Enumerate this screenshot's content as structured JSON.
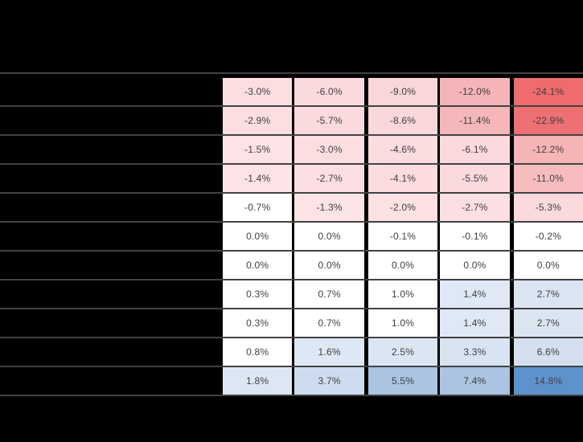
{
  "page": {
    "background": "#000000"
  },
  "colors": {
    "negative_strong": "#ee6b6e",
    "negative_medium": "#f5b4b7",
    "negative_light": "#fbdade",
    "neutral": "#ffffff",
    "positive_light": "#dce6f3",
    "positive_medium": "#aac4e2",
    "positive_strong": "#5e92cc",
    "cell_text": "#3f3f3f",
    "column_border": "#000000",
    "row_separator": "#6e6e6e"
  },
  "chart_data": {
    "type": "heatmap",
    "title": "",
    "notes": "sensitivity table heatmap; row and column headers not visible (black background)",
    "n_rows": 11,
    "n_cols": 5,
    "values": [
      [
        -3.0,
        -6.0,
        -9.0,
        -12.0,
        -24.1
      ],
      [
        -2.9,
        -5.7,
        -8.6,
        -11.4,
        -22.9
      ],
      [
        -1.5,
        -3.0,
        -4.6,
        -6.1,
        -12.2
      ],
      [
        -1.4,
        -2.7,
        -4.1,
        -5.5,
        -11.0
      ],
      [
        -0.7,
        -1.3,
        -2.0,
        -2.7,
        -5.3
      ],
      [
        0.0,
        0.0,
        -0.1,
        -0.1,
        -0.2
      ],
      [
        0.0,
        0.0,
        0.0,
        0.0,
        0.0
      ],
      [
        0.3,
        0.7,
        1.0,
        1.4,
        2.7
      ],
      [
        0.3,
        0.7,
        1.0,
        1.4,
        2.7
      ],
      [
        0.8,
        1.6,
        2.5,
        3.3,
        6.6
      ],
      [
        1.8,
        3.7,
        5.5,
        7.4,
        14.8
      ]
    ],
    "unit": "%",
    "rows": [
      {
        "cells": [
          {
            "text": "-3.0%",
            "bg": "#fcdee1"
          },
          {
            "text": "-6.0%",
            "bg": "#fbdade"
          },
          {
            "text": "-9.0%",
            "bg": "#fad6d9"
          },
          {
            "text": "-12.0%",
            "bg": "#f5b4b7"
          },
          {
            "text": "-24.1%",
            "bg": "#ee6b6e"
          }
        ]
      },
      {
        "cells": [
          {
            "text": "-2.9%",
            "bg": "#fcdee1"
          },
          {
            "text": "-5.7%",
            "bg": "#fbdade"
          },
          {
            "text": "-8.6%",
            "bg": "#fad7da"
          },
          {
            "text": "-11.4%",
            "bg": "#f5b7ba"
          },
          {
            "text": "-22.9%",
            "bg": "#ee7073"
          }
        ]
      },
      {
        "cells": [
          {
            "text": "-1.5%",
            "bg": "#fde3e5"
          },
          {
            "text": "-3.0%",
            "bg": "#fcdee1"
          },
          {
            "text": "-4.6%",
            "bg": "#fbdcdf"
          },
          {
            "text": "-6.1%",
            "bg": "#fbd9dc"
          },
          {
            "text": "-12.2%",
            "bg": "#f5b4b6"
          }
        ]
      },
      {
        "cells": [
          {
            "text": "-1.4%",
            "bg": "#fde3e5"
          },
          {
            "text": "-2.7%",
            "bg": "#fcdfe2"
          },
          {
            "text": "-4.1%",
            "bg": "#fcdcdf"
          },
          {
            "text": "-5.5%",
            "bg": "#fbdade"
          },
          {
            "text": "-11.0%",
            "bg": "#f6bcbe"
          }
        ]
      },
      {
        "cells": [
          {
            "text": "-0.7%",
            "bg": "#ffffff"
          },
          {
            "text": "-1.3%",
            "bg": "#fde4e6"
          },
          {
            "text": "-2.0%",
            "bg": "#fde1e3"
          },
          {
            "text": "-2.7%",
            "bg": "#fcdfe2"
          },
          {
            "text": "-5.3%",
            "bg": "#fbdade"
          }
        ]
      },
      {
        "cells": [
          {
            "text": "0.0%",
            "bg": "#ffffff"
          },
          {
            "text": "0.0%",
            "bg": "#ffffff"
          },
          {
            "text": "-0.1%",
            "bg": "#ffffff"
          },
          {
            "text": "-0.1%",
            "bg": "#ffffff"
          },
          {
            "text": "-0.2%",
            "bg": "#ffffff"
          }
        ]
      },
      {
        "cells": [
          {
            "text": "0.0%",
            "bg": "#ffffff"
          },
          {
            "text": "0.0%",
            "bg": "#ffffff"
          },
          {
            "text": "0.0%",
            "bg": "#ffffff"
          },
          {
            "text": "0.0%",
            "bg": "#ffffff"
          },
          {
            "text": "0.0%",
            "bg": "#ffffff"
          }
        ]
      },
      {
        "cells": [
          {
            "text": "0.3%",
            "bg": "#ffffff"
          },
          {
            "text": "0.7%",
            "bg": "#ffffff"
          },
          {
            "text": "1.0%",
            "bg": "#ffffff"
          },
          {
            "text": "1.4%",
            "bg": "#dfe8f5"
          },
          {
            "text": "2.7%",
            "bg": "#dbe5f2"
          }
        ]
      },
      {
        "cells": [
          {
            "text": "0.3%",
            "bg": "#ffffff"
          },
          {
            "text": "0.7%",
            "bg": "#ffffff"
          },
          {
            "text": "1.0%",
            "bg": "#ffffff"
          },
          {
            "text": "1.4%",
            "bg": "#dfe8f5"
          },
          {
            "text": "2.7%",
            "bg": "#dbe5f2"
          }
        ]
      },
      {
        "cells": [
          {
            "text": "0.8%",
            "bg": "#ffffff"
          },
          {
            "text": "1.6%",
            "bg": "#dee8f4"
          },
          {
            "text": "2.5%",
            "bg": "#dce6f3"
          },
          {
            "text": "3.3%",
            "bg": "#d9e4f2"
          },
          {
            "text": "6.6%",
            "bg": "#d4e0f0"
          }
        ]
      },
      {
        "cells": [
          {
            "text": "1.8%",
            "bg": "#dde7f4"
          },
          {
            "text": "3.7%",
            "bg": "#cddcee"
          },
          {
            "text": "5.5%",
            "bg": "#aac4e2"
          },
          {
            "text": "7.4%",
            "bg": "#abc4e2"
          },
          {
            "text": "14.8%",
            "bg": "#5e92cc"
          }
        ]
      }
    ]
  }
}
